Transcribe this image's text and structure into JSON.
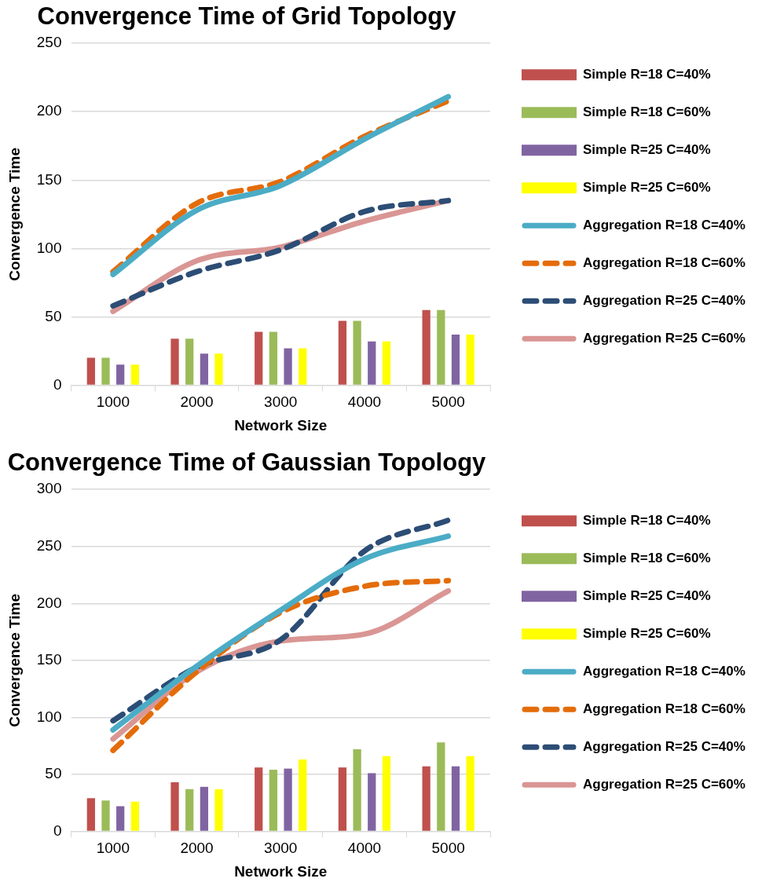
{
  "chart_data": [
    {
      "type": "bar",
      "title": "Convergence Time of Grid Topology",
      "xlabel": "Network Size",
      "ylabel": "Convergence Time",
      "categories": [
        "1000",
        "2000",
        "3000",
        "4000",
        "5000"
      ],
      "ylim": [
        0,
        250
      ],
      "yticks": [
        0,
        50,
        100,
        150,
        200,
        250
      ],
      "grid": "y",
      "legend": "right",
      "series": [
        {
          "name": "Simple R=18 C=40%",
          "type": "bar",
          "color": "#c0504d",
          "values": [
            20,
            34,
            39,
            47,
            55
          ]
        },
        {
          "name": "Simple R=18 C=60%",
          "type": "bar",
          "color": "#9bbb59",
          "values": [
            20,
            34,
            39,
            47,
            55
          ]
        },
        {
          "name": "Simple R=25 C=40%",
          "type": "bar",
          "color": "#8064a2",
          "values": [
            15,
            23,
            27,
            32,
            37
          ]
        },
        {
          "name": "Simple R=25 C=60%",
          "type": "bar",
          "color": "#ffff00",
          "values": [
            15,
            23,
            27,
            32,
            37
          ]
        },
        {
          "name": "Aggregation R=18 C=40%",
          "type": "line",
          "line_style": "solid",
          "color": "#4bacc6",
          "values": [
            81,
            128,
            146,
            180,
            211
          ]
        },
        {
          "name": "Aggregation R=18 C=60%",
          "type": "line",
          "line_style": "dashed",
          "color": "#e46c0a",
          "values": [
            83,
            133,
            149,
            182,
            208
          ]
        },
        {
          "name": "Aggregation R=25 C=40%",
          "type": "line",
          "line_style": "dashed",
          "color": "#2c4d75",
          "values": [
            58,
            83,
            99,
            127,
            135
          ]
        },
        {
          "name": "Aggregation R=25 C=60%",
          "type": "line",
          "line_style": "solid",
          "color": "#d99694",
          "values": [
            54,
            91,
            101,
            120,
            135
          ]
        }
      ]
    },
    {
      "type": "bar",
      "title": "Convergence Time of Gaussian Topology",
      "xlabel": "Network Size",
      "ylabel": "Convergence Time",
      "categories": [
        "1000",
        "2000",
        "3000",
        "4000",
        "5000"
      ],
      "ylim": [
        0,
        300
      ],
      "yticks": [
        0,
        50,
        100,
        150,
        200,
        250,
        300
      ],
      "grid": "y",
      "legend": "right",
      "series": [
        {
          "name": "Simple R=18 C=40%",
          "type": "bar",
          "color": "#c0504d",
          "values": [
            29,
            43,
            56,
            56,
            57
          ]
        },
        {
          "name": "Simple R=18 C=60%",
          "type": "bar",
          "color": "#9bbb59",
          "values": [
            27,
            37,
            54,
            72,
            78
          ]
        },
        {
          "name": "Simple R=25 C=40%",
          "type": "bar",
          "color": "#8064a2",
          "values": [
            22,
            39,
            55,
            51,
            57
          ]
        },
        {
          "name": "Simple R=25 C=60%",
          "type": "bar",
          "color": "#ffff00",
          "values": [
            26,
            37,
            63,
            66,
            66
          ]
        },
        {
          "name": "Aggregation R=18 C=40%",
          "type": "line",
          "line_style": "solid",
          "color": "#4bacc6",
          "values": [
            89,
            145,
            194,
            239,
            259
          ]
        },
        {
          "name": "Aggregation R=18 C=60%",
          "type": "line",
          "line_style": "dashed",
          "color": "#e46c0a",
          "values": [
            71,
            140,
            192,
            215,
            220
          ]
        },
        {
          "name": "Aggregation R=25 C=40%",
          "type": "line",
          "line_style": "dashed",
          "color": "#2c4d75",
          "values": [
            97,
            144,
            168,
            246,
            273
          ]
        },
        {
          "name": "Aggregation R=25 C=60%",
          "type": "line",
          "line_style": "solid",
          "color": "#d99694",
          "values": [
            81,
            140,
            167,
            173,
            211
          ]
        }
      ]
    }
  ]
}
